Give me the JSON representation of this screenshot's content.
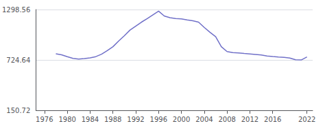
{
  "chart_data": {
    "type": "line",
    "x": [
      1978,
      1979,
      1980,
      1981,
      1982,
      1983,
      1984,
      1985,
      1986,
      1987,
      1988,
      1989,
      1990,
      1991,
      1992,
      1993,
      1994,
      1995,
      1996,
      1997,
      1998,
      1999,
      2000,
      2001,
      2002,
      2003,
      2004,
      2005,
      2006,
      2007,
      2008,
      2009,
      2010,
      2011,
      2012,
      2013,
      2014,
      2015,
      2016,
      2017,
      2018,
      2019,
      2020,
      2021,
      2022
    ],
    "values": [
      795,
      783,
      762,
      742,
      735,
      740,
      748,
      762,
      790,
      830,
      875,
      940,
      1000,
      1065,
      1110,
      1155,
      1195,
      1238,
      1280,
      1225,
      1205,
      1195,
      1192,
      1180,
      1170,
      1155,
      1095,
      1040,
      990,
      875,
      820,
      808,
      805,
      798,
      793,
      787,
      781,
      770,
      763,
      757,
      753,
      746,
      726,
      724,
      758
    ],
    "color": "#7070c8",
    "xlim": [
      1974.5,
      2023.0
    ],
    "xticks": [
      1976,
      1980,
      1984,
      1988,
      1992,
      1996,
      2000,
      2004,
      2008,
      2012,
      2016,
      2022
    ],
    "ylim": [
      150.72,
      1298.56
    ],
    "yticks": [
      150.72,
      724.64,
      1298.56
    ],
    "grid": true
  }
}
